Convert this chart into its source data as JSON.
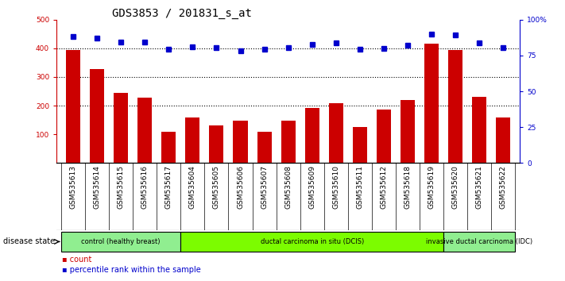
{
  "title": "GDS3853 / 201831_s_at",
  "samples": [
    "GSM535613",
    "GSM535614",
    "GSM535615",
    "GSM535616",
    "GSM535617",
    "GSM535604",
    "GSM535605",
    "GSM535606",
    "GSM535607",
    "GSM535608",
    "GSM535609",
    "GSM535610",
    "GSM535611",
    "GSM535612",
    "GSM535618",
    "GSM535619",
    "GSM535620",
    "GSM535621",
    "GSM535622"
  ],
  "counts": [
    395,
    328,
    244,
    228,
    108,
    158,
    132,
    147,
    108,
    148,
    192,
    208,
    126,
    186,
    220,
    415,
    393,
    230,
    158
  ],
  "percentiles": [
    440,
    435,
    422,
    422,
    397,
    405,
    402,
    390,
    397,
    403,
    413,
    418,
    397,
    400,
    412,
    450,
    448,
    420,
    403
  ],
  "groups": [
    {
      "label": "control (healthy breast)",
      "start": 0,
      "end": 5,
      "color": "#90EE90"
    },
    {
      "label": "ductal carcinoma in situ (DCIS)",
      "start": 5,
      "end": 16,
      "color": "#7CFC00"
    },
    {
      "label": "invasive ductal carcinoma (IDC)",
      "start": 16,
      "end": 19,
      "color": "#90EE90"
    }
  ],
  "group_boundaries": [
    0,
    5,
    16,
    19
  ],
  "bar_color": "#CC0000",
  "dot_color": "#0000CC",
  "ylim_left": [
    0,
    500
  ],
  "ylim_right": [
    0,
    100
  ],
  "yticks_left": [
    100,
    200,
    300,
    400,
    500
  ],
  "yticks_right": [
    0,
    25,
    50,
    75,
    100
  ],
  "dotted_lines": [
    200,
    300,
    400
  ],
  "bg_color": "#CCCCCC",
  "plot_bg": "#FFFFFF",
  "title_fontsize": 10,
  "tick_fontsize": 6.5,
  "label_fontsize": 7
}
